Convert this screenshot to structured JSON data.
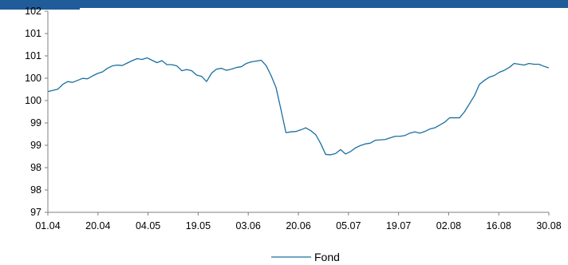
{
  "colors": {
    "header": "#1f5c99",
    "line": "#1a6fa0",
    "axis": "#7f7f7f"
  },
  "chart_data": {
    "type": "line",
    "x_tick_labels": [
      "01.04",
      "20.04",
      "04.05",
      "19.05",
      "03.06",
      "20.06",
      "05.07",
      "19.07",
      "02.08",
      "16.08",
      "30.08"
    ],
    "y_tick_labels": [
      "97",
      "98",
      "98",
      "99",
      "99",
      "100",
      "100",
      "101",
      "101",
      "102"
    ],
    "ylim": [
      97,
      102
    ],
    "legend": {
      "position": "bottom",
      "entries": [
        "Fond"
      ]
    },
    "series": [
      {
        "name": "Fond",
        "values": [
          100.0,
          100.03,
          100.06,
          100.18,
          100.25,
          100.23,
          100.28,
          100.33,
          100.32,
          100.39,
          100.45,
          100.49,
          100.58,
          100.64,
          100.66,
          100.65,
          100.71,
          100.77,
          100.82,
          100.8,
          100.84,
          100.78,
          100.72,
          100.77,
          100.67,
          100.67,
          100.64,
          100.52,
          100.55,
          100.52,
          100.41,
          100.38,
          100.25,
          100.46,
          100.56,
          100.58,
          100.53,
          100.56,
          100.6,
          100.62,
          100.7,
          100.74,
          100.76,
          100.78,
          100.65,
          100.4,
          100.1,
          99.55,
          98.98,
          99.0,
          99.01,
          99.05,
          99.1,
          99.03,
          98.93,
          98.71,
          98.44,
          98.43,
          98.46,
          98.56,
          98.45,
          98.51,
          98.6,
          98.66,
          98.7,
          98.72,
          98.79,
          98.8,
          98.81,
          98.85,
          98.89,
          98.89,
          98.91,
          98.97,
          99.0,
          98.97,
          99.01,
          99.07,
          99.1,
          99.17,
          99.24,
          99.35,
          99.35,
          99.35,
          99.5,
          99.7,
          99.9,
          100.18,
          100.28,
          100.36,
          100.4,
          100.48,
          100.53,
          100.6,
          100.7,
          100.68,
          100.66,
          100.7,
          100.68,
          100.68,
          100.63,
          100.59
        ]
      }
    ]
  }
}
